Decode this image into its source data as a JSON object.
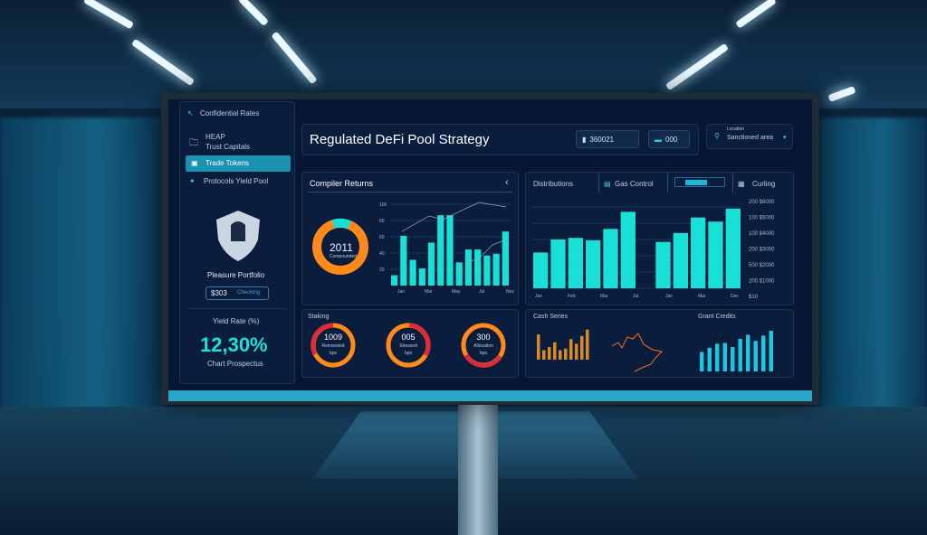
{
  "sidebar": {
    "header": "Confidential Rates",
    "items": [
      {
        "label": "HEAP",
        "sub": "Trust Capitals"
      },
      {
        "label": "Trade Tokens",
        "active": true
      },
      {
        "label": "Protocols Yield Pool"
      }
    ],
    "shield_caption": "Pleasure Portfolio",
    "badge_value": "$303",
    "badge_label": "Checking",
    "metric_label": "Yield Rate (%)",
    "metric_value": "12,30%",
    "metric_caption": "Chart Prospectus"
  },
  "header": {
    "title": "Regulated DeFi Pool Strategy",
    "stat1": "360021",
    "stat2": "000",
    "location_label": "Location",
    "location_value": "Sanctioned area"
  },
  "panel_returns": {
    "title": "Compiler Returns",
    "donut_value": "2011",
    "donut_caption": "Compounded",
    "y_ticks": [
      "100",
      "80",
      "60",
      "40",
      "20"
    ],
    "x_ticks": [
      "Jan",
      "Mar",
      "May",
      "Jul",
      "Nov"
    ],
    "bars": [
      12,
      58,
      30,
      20,
      50,
      82,
      82,
      27,
      42,
      42,
      35,
      37,
      63
    ]
  },
  "panel_dist": {
    "tabs": [
      "Distributions",
      "Gas Control",
      "",
      "Curling"
    ],
    "y_ticks": [
      "200 $6000",
      "100 $5000",
      "100 $4000",
      "200 $3000",
      "500 $2000",
      "200 $1000",
      "$10"
    ],
    "x_ticks": [
      "Jan",
      "Feb",
      "Mar",
      "Jul",
      "Jan",
      "Mar",
      "Dec"
    ],
    "bars": [
      44,
      60,
      62,
      59,
      73,
      94,
      0,
      57,
      68,
      87,
      82,
      98
    ]
  },
  "panel_gauges": {
    "title": "Staking",
    "gauges": [
      {
        "value": "1009",
        "caption": "Reinvested",
        "unit": "bps"
      },
      {
        "value": "005",
        "caption": "Stressed",
        "unit": "bps"
      },
      {
        "value": "300",
        "caption": "Allocation",
        "unit": "bps"
      }
    ]
  },
  "panel_trend": {
    "title": "Cash Series",
    "title2": "Grant Credits",
    "orange_bars": [
      80,
      30,
      40,
      55,
      30,
      35,
      65,
      50,
      75,
      95
    ],
    "cyan_bars": [
      48,
      58,
      68,
      70,
      60,
      80,
      90,
      75,
      88,
      100
    ]
  },
  "colors": {
    "accent": "#19e0d6",
    "orange": "#ff8a1a",
    "red": "#e02a3a",
    "bg": "#071633"
  }
}
